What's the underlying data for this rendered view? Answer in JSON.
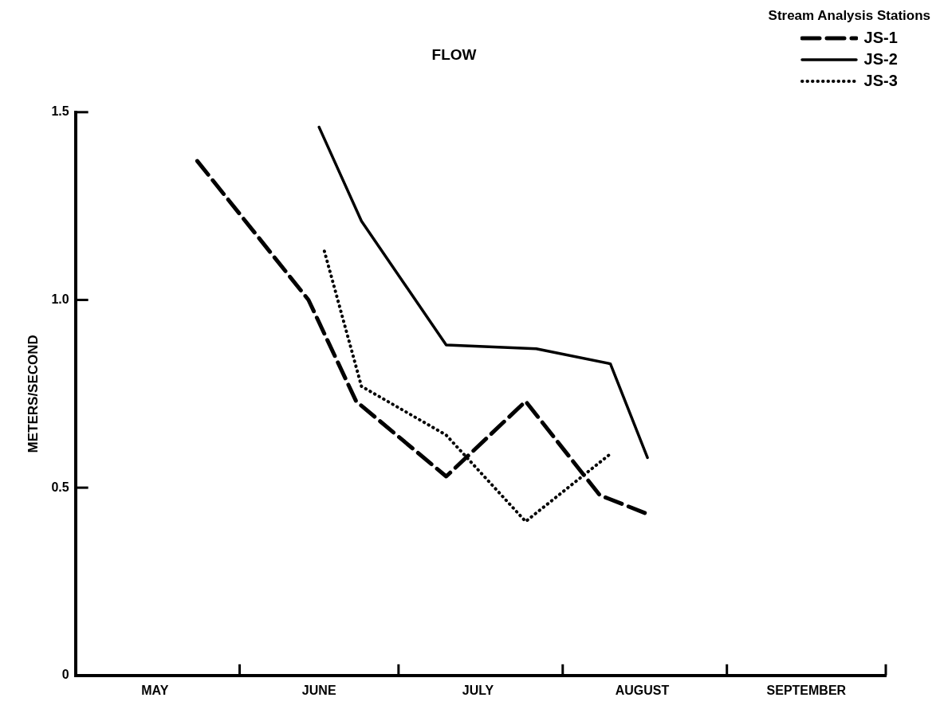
{
  "chart_data": {
    "type": "line",
    "title": "FLOW",
    "ylabel": "METERS/SECOND",
    "legend_title": "Stream Analysis Stations",
    "legend": "top right",
    "grid": false,
    "marker": "none",
    "xlim": [
      "--05-01",
      "--10-01"
    ],
    "xticks": [
      {
        "value": "--05-16",
        "label": "MAY"
      },
      {
        "value": "--06-01",
        "label": null
      },
      {
        "value": "--06-16",
        "label": "JUNE"
      },
      {
        "value": "--07-01",
        "label": null
      },
      {
        "value": "--07-16",
        "label": "JULY"
      },
      {
        "value": "--08-01",
        "label": null
      },
      {
        "value": "--08-16",
        "label": "AUGUST"
      },
      {
        "value": "--09-01",
        "label": null
      },
      {
        "value": "--09-16",
        "label": "SEPTEMBER"
      },
      {
        "value": "--10-01",
        "label": null
      }
    ],
    "ylim": [
      0,
      1.5
    ],
    "yticks": [
      0,
      {
        "value": 0.5,
        "label": "0.5"
      },
      {
        "value": 1,
        "label": "1.0"
      },
      {
        "value": 1.5,
        "label": "1.5"
      }
    ],
    "series": [
      {
        "name": "JS-1",
        "color": "#000000",
        "line_style": "dashed",
        "x": [
          "--05-24",
          "--06-14",
          "--06-23",
          "--07-10",
          "--07-25",
          "--08-08",
          "--08-17"
        ],
        "values": [
          1.37,
          1.0,
          0.73,
          0.53,
          0.73,
          0.48,
          0.43
        ]
      },
      {
        "name": "JS-2",
        "color": "#000000",
        "line_style": "solid",
        "x": [
          "--06-16",
          "--06-24",
          "--07-10",
          "--07-27",
          "--08-10",
          "--08-17"
        ],
        "values": [
          1.46,
          1.21,
          0.88,
          0.87,
          0.83,
          0.58
        ]
      },
      {
        "name": "JS-3",
        "color": "#000000",
        "line_style": "dotted",
        "x": [
          "--06-17",
          "--06-24",
          "--07-10",
          "--07-25",
          "--08-10"
        ],
        "values": [
          1.13,
          0.77,
          0.64,
          0.41,
          0.59
        ]
      }
    ]
  }
}
